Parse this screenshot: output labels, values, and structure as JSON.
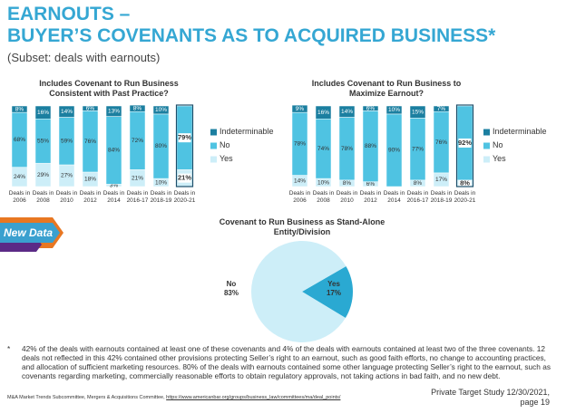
{
  "header": {
    "title_line1": "EARNOUTS –",
    "title_line2": "BUYER’S COVENANTS AS TO ACQUIRED BUSINESS*",
    "subtitle": "(Subset: deals with earnouts)"
  },
  "badge": "New Data",
  "chart_data": [
    {
      "type": "stacked_bar",
      "title": "Includes Covenant to Run Business Consistent with Past Practice?",
      "categories": [
        "Deals in 2006",
        "Deals in 2008",
        "Deals in 2010",
        "Deals in 2012",
        "Deals in 2014",
        "Deals in 2016-17",
        "Deals in 2018-19",
        "Deals in 2020-21"
      ],
      "ylim": [
        0,
        100
      ],
      "series": [
        {
          "name": "Yes",
          "color": "#cdeef8",
          "values": [
            24,
            29,
            27,
            18,
            3,
            21,
            10,
            21
          ],
          "value_labels": [
            "24%",
            "29%",
            "27%",
            "18%",
            "3%",
            "21%",
            "10%",
            "21%"
          ]
        },
        {
          "name": "No",
          "color": "#4fc3e2",
          "values": [
            68,
            55,
            59,
            76,
            84,
            72,
            80,
            79
          ],
          "value_labels": [
            "68%",
            "55%",
            "59%",
            "76%",
            "84%",
            "72%",
            "80%",
            "79%"
          ]
        },
        {
          "name": "Indeterminable",
          "color": "#1b7fa0",
          "values": [
            8,
            16,
            14,
            6,
            13,
            8,
            10,
            null
          ],
          "value_labels": [
            "8%",
            "16%",
            "14%",
            "6%",
            "13%",
            "8%",
            "10%",
            null
          ]
        }
      ]
    },
    {
      "type": "stacked_bar",
      "title": "Includes Covenant to Run Business to Maximize Earnout?",
      "categories": [
        "Deals in 2006",
        "Deals in 2008",
        "Deals in 2010",
        "Deals in 2012",
        "Deals in 2014",
        "Deals in 2016-17",
        "Deals in 2018-19",
        "Deals in 2020-21"
      ],
      "ylim": [
        0,
        100
      ],
      "series": [
        {
          "name": "Yes",
          "color": "#cdeef8",
          "values": [
            14,
            10,
            8,
            6,
            null,
            8,
            17,
            8
          ],
          "value_labels": [
            "14%",
            "10%",
            "8%",
            "6%",
            null,
            "8%",
            "17%",
            "8%"
          ]
        },
        {
          "name": "No",
          "color": "#4fc3e2",
          "values": [
            78,
            74,
            78,
            88,
            90,
            77,
            76,
            92
          ],
          "value_labels": [
            "78%",
            "74%",
            "78%",
            "88%",
            "90%",
            "77%",
            "76%",
            "92%"
          ]
        },
        {
          "name": "Indeterminable",
          "color": "#1b7fa0",
          "values": [
            9,
            16,
            14,
            6,
            10,
            15,
            7,
            null
          ],
          "value_labels": [
            "9%",
            "16%",
            "14%",
            "6%",
            "10%",
            "15%",
            "7%",
            null
          ]
        }
      ]
    },
    {
      "type": "pie",
      "title": "Covenant to Run Business as Stand-Alone Entity/Division",
      "categories": [
        "No",
        "Yes"
      ],
      "values": [
        83,
        17
      ],
      "value_labels": [
        "83%",
        "17%"
      ],
      "colors": [
        "#cdeef8",
        "#2aa9d2"
      ]
    }
  ],
  "footnote": {
    "marker": "*",
    "text": "42% of the deals with earnouts contained at least one of these covenants and 4% of the deals with earnouts contained at least two of the three covenants. 12 deals not reflected in this 42% contained other provisions protecting Seller’s right to an earnout, such as good faith efforts, no change to accounting practices, and allocation of sufficient marketing resources. 80% of the deals with earnouts contained some other language protecting Seller’s right to the earnout, such as covenants regarding marketing, commercially reasonable efforts to obtain regulatory approvals, not taking actions in bad faith, and no new debt."
  },
  "footer": {
    "source": "M&A Market Trends Subcommittee, Mergers & Acquisitions Committee,",
    "url": "https://www.americanbar.org/groups/business_law/committees/ma/deal_points/",
    "study": "Private Target Study 12/30/2021,",
    "page": "page 19"
  }
}
